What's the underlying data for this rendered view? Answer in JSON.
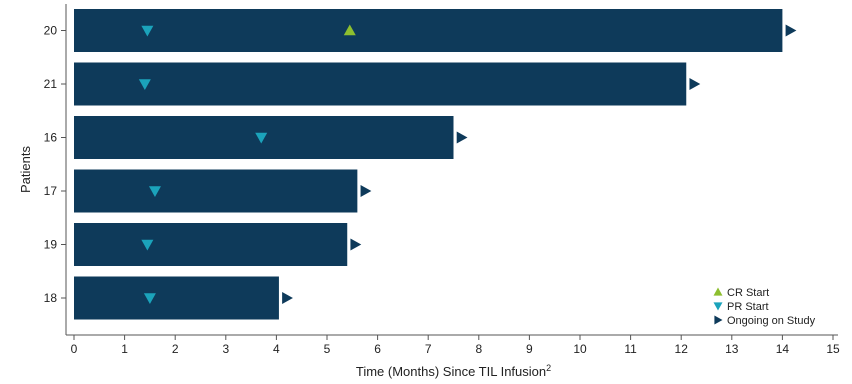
{
  "chart_data": {
    "type": "bar",
    "orientation": "horizontal",
    "xlabel": "Time (Months) Since TIL Infusion",
    "xlabel_superscript": "2",
    "ylabel": "Patients",
    "xlim": [
      0,
      15
    ],
    "x_ticks": [
      0,
      1,
      2,
      3,
      4,
      5,
      6,
      7,
      8,
      9,
      10,
      11,
      12,
      13,
      14,
      15
    ],
    "grid": false,
    "legend_position": "bottom-right",
    "categories": [
      "20",
      "21",
      "16",
      "17",
      "19",
      "18"
    ],
    "values": [
      14.0,
      12.1,
      7.5,
      5.6,
      5.4,
      4.05
    ],
    "pr_start": [
      1.45,
      1.4,
      3.7,
      1.6,
      1.45,
      1.5
    ],
    "cr_start": [
      5.45,
      null,
      null,
      null,
      null,
      null
    ],
    "ongoing": [
      true,
      true,
      true,
      true,
      true,
      true
    ],
    "legend": [
      {
        "key": "cr",
        "label": "CR Start",
        "marker": "triangle-up",
        "color": "#8dbf2f"
      },
      {
        "key": "pr",
        "label": "PR Start",
        "marker": "triangle-down",
        "color": "#1ba3bb"
      },
      {
        "key": "ongoing",
        "label": "Ongoing on Study",
        "marker": "triangle-right",
        "color": "#0e3a5a"
      }
    ],
    "colors": {
      "bar": "#0e3a5a",
      "cr": "#8dbf2f",
      "pr": "#1ba3bb",
      "ongoing": "#0e3a5a",
      "axis": "#555555"
    }
  }
}
